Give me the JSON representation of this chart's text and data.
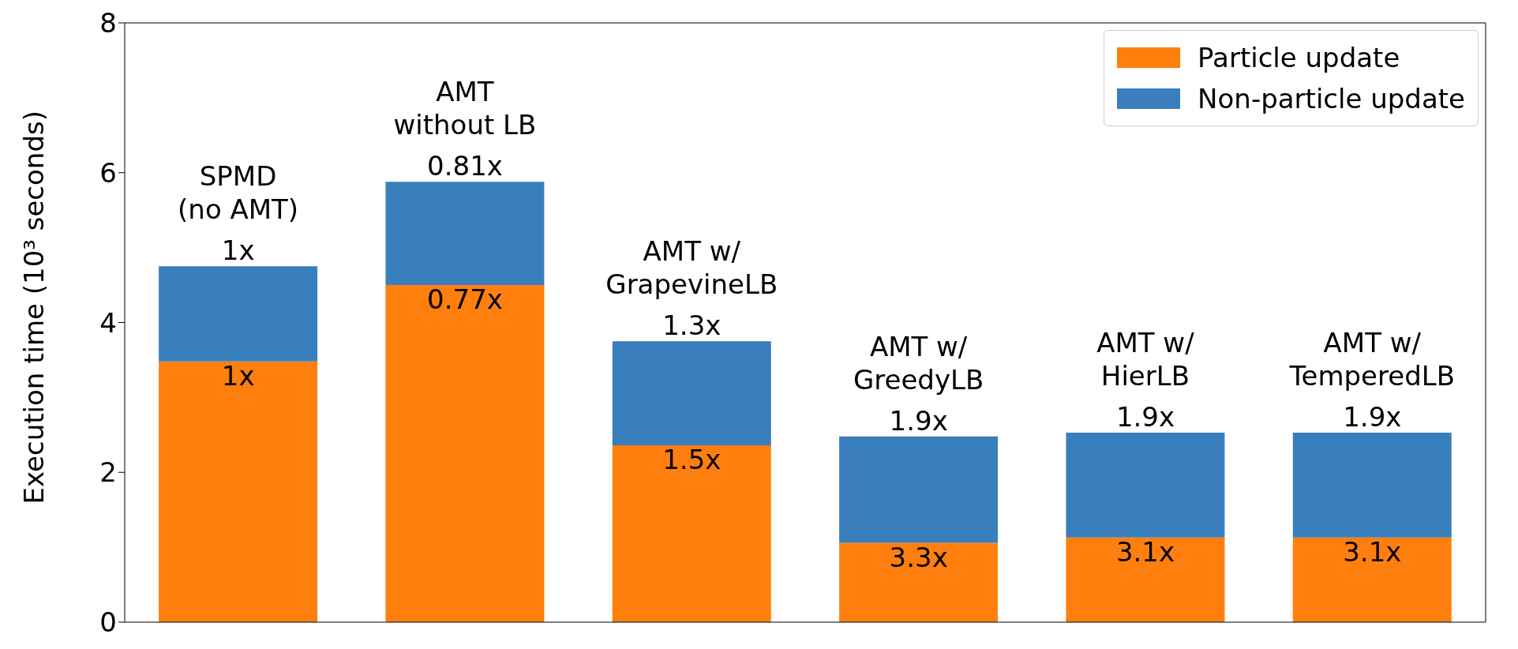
{
  "chart_data": {
    "type": "bar",
    "stacked": true,
    "ylabel": "Execution time (10³ seconds)",
    "categories": [
      "SPMD\n(no AMT)",
      "AMT\nwithout LB",
      "AMT w/\nGrapevineLB",
      "AMT w/\nGreedyLB",
      "AMT w/\nHierLB",
      "AMT w/\nTemperedLB"
    ],
    "series": [
      {
        "name": "Particle update",
        "color": "#ff7f0e",
        "values": [
          3.48,
          4.5,
          2.36,
          1.06,
          1.13,
          1.13
        ]
      },
      {
        "name": "Non-particle update",
        "color": "#3a7fbd",
        "values": [
          1.27,
          1.38,
          1.39,
          1.42,
          1.4,
          1.4
        ]
      }
    ],
    "annotations": [
      {
        "text": "1x",
        "x": "SPMD\n(no AMT)",
        "y": 3.48
      },
      {
        "text": "0.77x",
        "x": "AMT\nwithout LB",
        "y": 4.5
      },
      {
        "text": "1.5x",
        "x": "AMT w/\nGrapevineLB",
        "y": 2.36
      },
      {
        "text": "3.3x",
        "x": "AMT w/\nGreedyLB",
        "y": 1.06
      },
      {
        "text": "3.1x",
        "x": "AMT w/\nHierLB",
        "y": 1.13
      },
      {
        "text": "3.1x",
        "x": "AMT w/\nTemperedLB",
        "y": 1.13
      },
      {
        "text": "1x",
        "x": "SPMD\n(no AMT)",
        "y": 4.75
      },
      {
        "text": "0.81x",
        "x": "AMT\nwithout LB",
        "y": 5.88
      },
      {
        "text": "1.3x",
        "x": "AMT w/\nGrapevineLB",
        "y": 3.75
      },
      {
        "text": "1.9x",
        "x": "AMT w/\nGreedyLB",
        "y": 2.48
      },
      {
        "text": "1.9x",
        "x": "AMT w/\nHierLB",
        "y": 2.53
      },
      {
        "text": "1.9x",
        "x": "AMT w/\nTemperedLB",
        "y": 2.53
      }
    ],
    "ylim": [
      0,
      8
    ],
    "yticks": [
      0,
      2,
      4,
      6,
      8
    ],
    "tick_labels": "y",
    "grid": false,
    "legend": "top right"
  }
}
